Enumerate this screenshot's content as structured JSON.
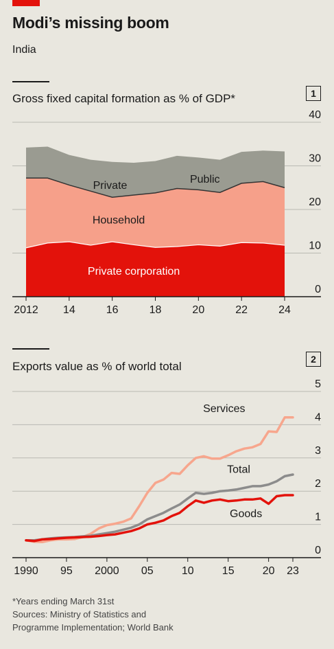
{
  "header": {
    "title": "Modi’s missing boom",
    "subtitle": "India",
    "accent_color": "#e3120b"
  },
  "charts": [
    {
      "number": "1",
      "title": "Gross fixed capital formation as % of GDP*"
    },
    {
      "number": "2",
      "title": "Exports value as % of world total"
    }
  ],
  "footnote": {
    "note": "*Years ending March 31st",
    "sources_line1": "Sources: Ministry of Statistics and",
    "sources_line2": "Programme Implementation; World Bank"
  },
  "chart_data": [
    {
      "type": "area",
      "stacked": true,
      "title": "Gross fixed capital formation as % of GDP*",
      "x": [
        2012,
        2013,
        2014,
        2015,
        2016,
        2017,
        2018,
        2019,
        2020,
        2021,
        2022,
        2023,
        2024
      ],
      "xticks": [
        "2012",
        "14",
        "16",
        "18",
        "20",
        "22",
        "24"
      ],
      "xtick_values": [
        2012,
        2014,
        2016,
        2018,
        2020,
        2022,
        2024
      ],
      "ylim": [
        0,
        40
      ],
      "yticks": [
        "0",
        "10",
        "20",
        "30",
        "40"
      ],
      "ytick_values": [
        0,
        10,
        20,
        30,
        40
      ],
      "y_axis_side": "right",
      "grid": true,
      "series": [
        {
          "name": "Private corporation",
          "color": "#e3120b",
          "label_color": "#ffffff",
          "values": [
            11.2,
            12.3,
            12.6,
            11.8,
            12.6,
            11.9,
            11.3,
            11.5,
            11.9,
            11.6,
            12.4,
            12.3,
            11.8
          ]
        },
        {
          "name": "Household",
          "color": "#f6a08a",
          "label_color": "#1a1a1a",
          "values": [
            16.0,
            14.9,
            13.0,
            12.4,
            10.2,
            11.4,
            12.5,
            13.3,
            12.6,
            12.3,
            13.6,
            14.1,
            13.2
          ]
        },
        {
          "name": "Private",
          "color": "#7d7d7d",
          "label_color": "#1a1a1a",
          "values": [
            null,
            null,
            null,
            null,
            null,
            null,
            null,
            null,
            null,
            null,
            null,
            null,
            null
          ]
        },
        {
          "name": "Public",
          "color": "#9a9b91",
          "label_color": "#1a1a1a",
          "values": [
            7.0,
            7.2,
            6.9,
            7.2,
            8.1,
            7.4,
            7.3,
            7.5,
            7.4,
            7.5,
            7.2,
            7.1,
            8.3
          ]
        }
      ]
    },
    {
      "type": "line",
      "title": "Exports value as % of world total",
      "x": [
        1990,
        1991,
        1992,
        1993,
        1994,
        1995,
        1996,
        1997,
        1998,
        1999,
        2000,
        2001,
        2002,
        2003,
        2004,
        2005,
        2006,
        2007,
        2008,
        2009,
        2010,
        2011,
        2012,
        2013,
        2014,
        2015,
        2016,
        2017,
        2018,
        2019,
        2020,
        2021,
        2022,
        2023
      ],
      "xticks": [
        "1990",
        "95",
        "2000",
        "05",
        "10",
        "15",
        "20",
        "23"
      ],
      "xtick_values": [
        1990,
        1995,
        2000,
        2005,
        2010,
        2015,
        2020,
        2023
      ],
      "ylim": [
        0,
        5
      ],
      "yticks": [
        "0",
        "1",
        "2",
        "3",
        "4",
        "5"
      ],
      "ytick_values": [
        0,
        1,
        2,
        3,
        4,
        5
      ],
      "y_axis_side": "right",
      "grid": true,
      "series": [
        {
          "name": "Services",
          "color": "#f7a68d",
          "values": [
            0.52,
            0.48,
            0.47,
            0.52,
            0.55,
            0.55,
            0.56,
            0.62,
            0.72,
            0.88,
            0.98,
            1.02,
            1.08,
            1.18,
            1.55,
            1.95,
            2.25,
            2.35,
            2.55,
            2.52,
            2.78,
            3.0,
            3.05,
            2.98,
            2.98,
            3.08,
            3.2,
            3.28,
            3.32,
            3.42,
            3.8,
            3.78,
            4.22,
            4.22
          ]
        },
        {
          "name": "Total",
          "color": "#8c8c8c",
          "values": [
            0.52,
            0.52,
            0.55,
            0.58,
            0.6,
            0.61,
            0.62,
            0.64,
            0.66,
            0.7,
            0.74,
            0.78,
            0.84,
            0.9,
            1.0,
            1.15,
            1.25,
            1.35,
            1.48,
            1.6,
            1.78,
            1.95,
            1.92,
            1.95,
            2.0,
            2.02,
            2.05,
            2.1,
            2.15,
            2.15,
            2.2,
            2.3,
            2.45,
            2.5
          ]
        },
        {
          "name": "Goods",
          "color": "#e3120b",
          "values": [
            0.52,
            0.5,
            0.55,
            0.56,
            0.58,
            0.6,
            0.61,
            0.62,
            0.63,
            0.65,
            0.68,
            0.7,
            0.75,
            0.8,
            0.88,
            1.0,
            1.05,
            1.12,
            1.25,
            1.35,
            1.55,
            1.72,
            1.65,
            1.72,
            1.75,
            1.7,
            1.72,
            1.75,
            1.75,
            1.78,
            1.62,
            1.85,
            1.88,
            1.88
          ]
        }
      ]
    }
  ]
}
